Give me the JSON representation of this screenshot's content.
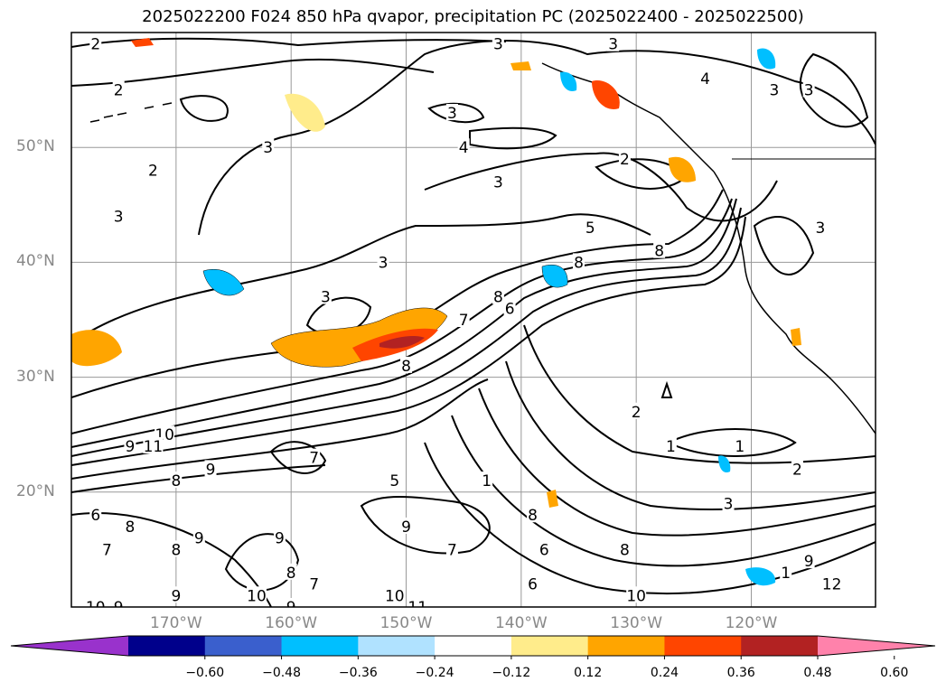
{
  "title": "2025022200 F024 850 hPa qvapor, precipitation PC (2025022400 - 2025022500)",
  "map": {
    "lat_labels": [
      {
        "text": "50°N",
        "lat": 50
      },
      {
        "text": "40°N",
        "lat": 40
      },
      {
        "text": "30°N",
        "lat": 30
      },
      {
        "text": "20°N",
        "lat": 20
      }
    ],
    "lon_labels": [
      {
        "text": "170°W",
        "lon": -170
      },
      {
        "text": "160°W",
        "lon": -160
      },
      {
        "text": "150°W",
        "lon": -150
      },
      {
        "text": "140°W",
        "lon": -140
      },
      {
        "text": "130°W",
        "lon": -130
      },
      {
        "text": "120°W",
        "lon": -120
      }
    ],
    "grid_color": "#999999",
    "contour_labels": [
      {
        "text": "2",
        "lon": -177,
        "lat": 59
      },
      {
        "text": "3",
        "lon": -142,
        "lat": 59
      },
      {
        "text": "3",
        "lon": -132,
        "lat": 59
      },
      {
        "text": "2",
        "lon": -175,
        "lat": 55
      },
      {
        "text": "4",
        "lon": -124,
        "lat": 56
      },
      {
        "text": "3",
        "lon": -118,
        "lat": 55
      },
      {
        "text": "3",
        "lon": -115,
        "lat": 55
      },
      {
        "text": "3",
        "lon": -146,
        "lat": 53
      },
      {
        "text": "3",
        "lon": -162,
        "lat": 50
      },
      {
        "text": "4",
        "lon": -145,
        "lat": 50
      },
      {
        "text": "2",
        "lon": -172,
        "lat": 48
      },
      {
        "text": "2",
        "lon": -131,
        "lat": 49
      },
      {
        "text": "3",
        "lon": -142,
        "lat": 47
      },
      {
        "text": "3",
        "lon": -175,
        "lat": 44
      },
      {
        "text": "3",
        "lon": -114,
        "lat": 43
      },
      {
        "text": "5",
        "lon": -134,
        "lat": 43
      },
      {
        "text": "8",
        "lon": -128,
        "lat": 41
      },
      {
        "text": "3",
        "lon": -152,
        "lat": 40
      },
      {
        "text": "8",
        "lon": -135,
        "lat": 40
      },
      {
        "text": "3",
        "lon": -157,
        "lat": 37
      },
      {
        "text": "8",
        "lon": -142,
        "lat": 37
      },
      {
        "text": "6",
        "lon": -141,
        "lat": 36
      },
      {
        "text": "7",
        "lon": -145,
        "lat": 35
      },
      {
        "text": "8",
        "lon": -150,
        "lat": 31
      },
      {
        "text": "2",
        "lon": -130,
        "lat": 27
      },
      {
        "text": "10",
        "lon": -171,
        "lat": 25
      },
      {
        "text": "9",
        "lon": -174,
        "lat": 24
      },
      {
        "text": "11",
        "lon": -172,
        "lat": 24
      },
      {
        "text": "1",
        "lon": -127,
        "lat": 24
      },
      {
        "text": "1",
        "lon": -121,
        "lat": 24
      },
      {
        "text": "7",
        "lon": -158,
        "lat": 23
      },
      {
        "text": "9",
        "lon": -167,
        "lat": 22
      },
      {
        "text": "8",
        "lon": -170,
        "lat": 21
      },
      {
        "text": "2",
        "lon": -116,
        "lat": 22
      },
      {
        "text": "5",
        "lon": -151,
        "lat": 21
      },
      {
        "text": "1",
        "lon": -143,
        "lat": 21
      },
      {
        "text": "6",
        "lon": -177,
        "lat": 18
      },
      {
        "text": "8",
        "lon": -174,
        "lat": 17
      },
      {
        "text": "3",
        "lon": -122,
        "lat": 19
      },
      {
        "text": "8",
        "lon": -139,
        "lat": 18
      },
      {
        "text": "9",
        "lon": -150,
        "lat": 17
      },
      {
        "text": "9",
        "lon": -161,
        "lat": 16
      },
      {
        "text": "7",
        "lon": -146,
        "lat": 15
      },
      {
        "text": "8",
        "lon": -131,
        "lat": 15
      },
      {
        "text": "6",
        "lon": -138,
        "lat": 15
      },
      {
        "text": "8",
        "lon": -170,
        "lat": 15
      },
      {
        "text": "9",
        "lon": -168,
        "lat": 16
      },
      {
        "text": "7",
        "lon": -176,
        "lat": 15
      },
      {
        "text": "8",
        "lon": -160,
        "lat": 13
      },
      {
        "text": "9",
        "lon": -115,
        "lat": 14
      },
      {
        "text": "1",
        "lon": -117,
        "lat": 13
      },
      {
        "text": "12",
        "lon": -113,
        "lat": 12
      },
      {
        "text": "6",
        "lon": -139,
        "lat": 12
      },
      {
        "text": "7",
        "lon": -158,
        "lat": 12
      },
      {
        "text": "10",
        "lon": -130,
        "lat": 11
      },
      {
        "text": "10",
        "lon": -163,
        "lat": 11
      },
      {
        "text": "10",
        "lon": -151,
        "lat": 11
      },
      {
        "text": "11",
        "lon": -149,
        "lat": 10
      },
      {
        "text": "9",
        "lon": -160,
        "lat": 10
      },
      {
        "text": "9",
        "lon": -170,
        "lat": 11
      },
      {
        "text": "10",
        "lon": -177,
        "lat": 10
      },
      {
        "text": "9",
        "lon": -175,
        "lat": 10
      }
    ]
  },
  "colorbar": {
    "ticks": [
      "−0.60",
      "−0.48",
      "−0.36",
      "−0.24",
      "−0.12",
      "0.12",
      "0.24",
      "0.36",
      "0.48",
      "0.60"
    ],
    "colors": [
      "#9932cc",
      "#00008b",
      "#3a5fcd",
      "#00bfff",
      "#b0e2ff",
      "#ffffff",
      "#ffec8b",
      "#ffa500",
      "#ff4500",
      "#b22222",
      "#ff82ab"
    ]
  }
}
